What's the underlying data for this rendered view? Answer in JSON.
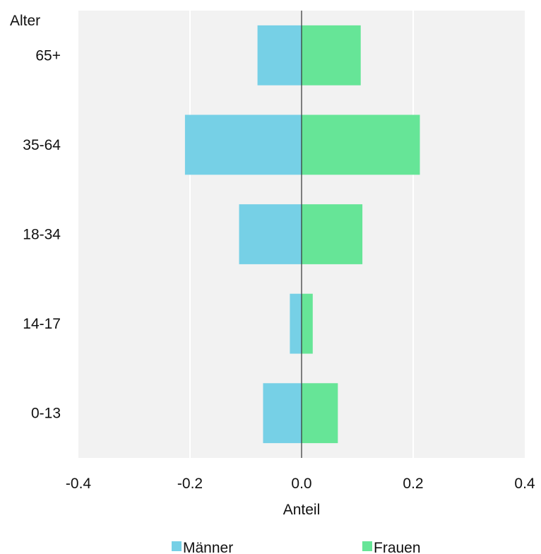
{
  "chart_data": {
    "type": "bar",
    "orientation": "horizontal",
    "stacking": "diverging",
    "title": "",
    "xlabel": "Anteil",
    "ylabel": "Alter",
    "categories": [
      "0-13",
      "14-17",
      "18-34",
      "35-64",
      "65+"
    ],
    "series": [
      {
        "name": "Männer",
        "color": "#76d0e6",
        "values": [
          -0.069,
          -0.021,
          -0.112,
          -0.209,
          -0.079
        ]
      },
      {
        "name": "Frauen",
        "color": "#66e597",
        "values": [
          0.065,
          0.02,
          0.109,
          0.212,
          0.106
        ]
      }
    ],
    "xlim": [
      -0.4,
      0.4
    ],
    "xticks": [
      -0.4,
      -0.2,
      0.0,
      0.2,
      0.4
    ],
    "xtick_labels": [
      "-0.4",
      "-0.2",
      "0.0",
      "0.2",
      "0.4"
    ],
    "grid": true,
    "legend": "bottom",
    "background": "#f2f2f2"
  }
}
